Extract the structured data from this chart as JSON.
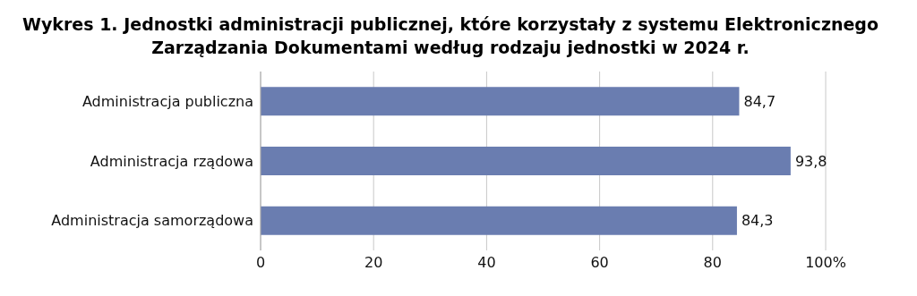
{
  "chart_data": {
    "type": "bar",
    "orientation": "horizontal",
    "title": "Wykres 1. Jednostki administracji publicznej, które korzystały z systemu Elektronicznego Zarządzania Dokumentami według rodzaju jednostki w 2024 r.",
    "categories": [
      "Administracja publiczna",
      "Administracja rządowa",
      "Administracja samorządowa"
    ],
    "values": [
      84.7,
      93.8,
      84.3
    ],
    "value_labels": [
      "84,7",
      "93,8",
      "84,3"
    ],
    "color": "#6a7db0",
    "xlim": [
      0,
      100
    ],
    "xticks": [
      0,
      20,
      40,
      60,
      80,
      {
        "value": 100,
        "label": "100%"
      }
    ],
    "grid": "x"
  }
}
